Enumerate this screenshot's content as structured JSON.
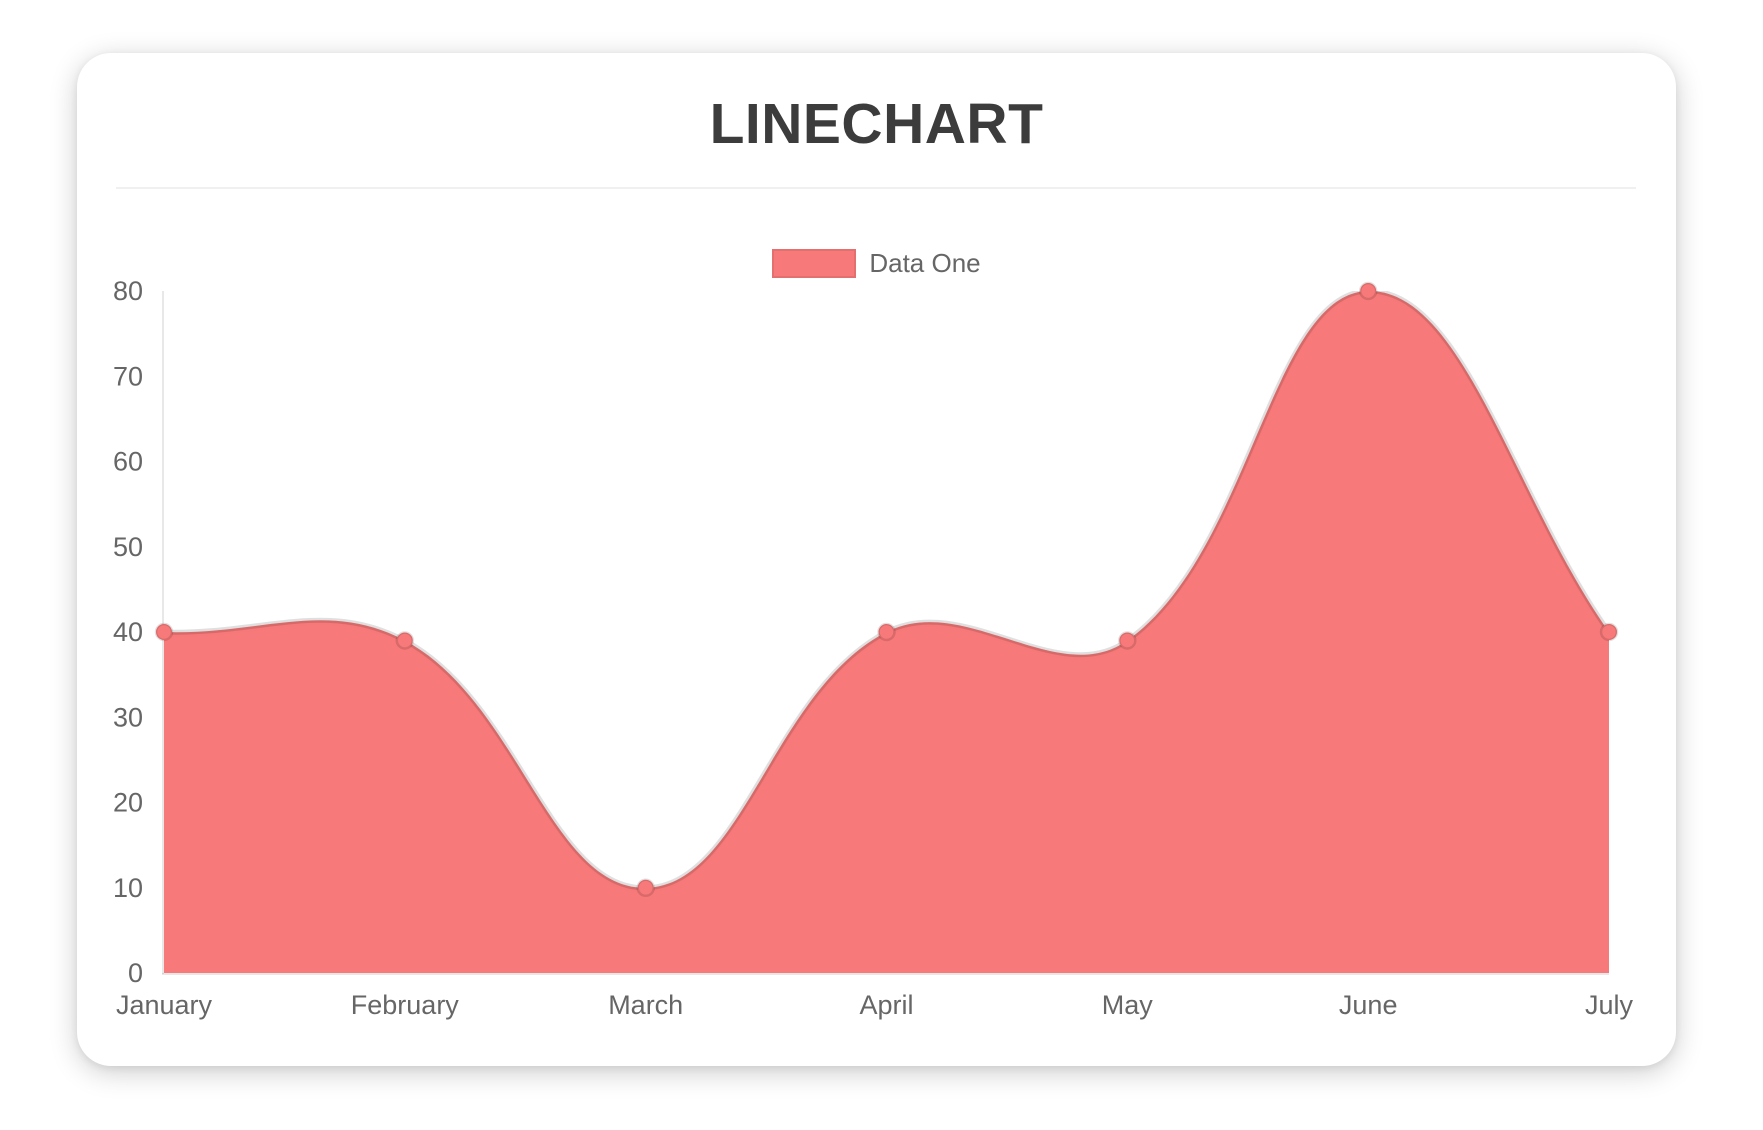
{
  "legend": {
    "label": "Data One",
    "swatch_color": "#f87979"
  },
  "chart_data": {
    "type": "area",
    "title": "LINECHART",
    "categories": [
      "January",
      "February",
      "March",
      "April",
      "May",
      "June",
      "July"
    ],
    "series": [
      {
        "name": "Data One",
        "values": [
          40,
          39,
          10,
          40,
          39,
          80,
          40
        ]
      }
    ],
    "xlabel": "",
    "ylabel": "",
    "ylim": [
      0,
      80
    ],
    "yticks": [
      0,
      10,
      20,
      30,
      40,
      50,
      60,
      70,
      80
    ],
    "grid": false,
    "legend_position": "top",
    "line_tension": 0.4,
    "colors": {
      "fill": "#f87979",
      "line": "rgba(0,0,0,0.12)",
      "point_fill": "#f87979",
      "point_border": "rgba(0,0,0,0.12)",
      "axis_line": "rgba(0,0,0,0.09)",
      "tick_text": "#666666",
      "title_text": "#3c3c3c"
    }
  }
}
